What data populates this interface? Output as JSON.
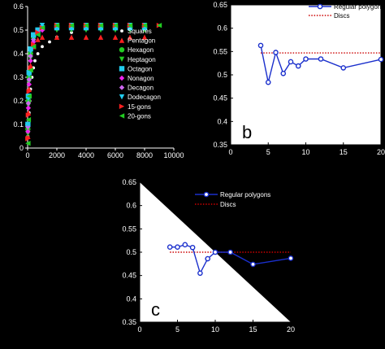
{
  "chart_data": [
    {
      "type": "scatter",
      "panel": "a",
      "xlabel": "",
      "ylabel": "",
      "xlim": [
        0,
        10000
      ],
      "ylim": [
        0,
        0.6
      ],
      "x_ticks": [
        "0",
        "2000",
        "4000",
        "6000",
        "8000",
        "10000"
      ],
      "y_ticks": [
        "0",
        "0.1",
        "0.2",
        "0.3",
        "0.4",
        "0.5",
        "0.6"
      ],
      "x_tick_values": [
        0,
        2000,
        4000,
        6000,
        8000,
        10000
      ],
      "y_tick_values": [
        0,
        0.1,
        0.2,
        0.3,
        0.4,
        0.5,
        0.6
      ],
      "legend_position": "right",
      "series": [
        {
          "name": "Squares",
          "marker": "dot",
          "color": "#ffffff",
          "x": [
            20,
            50,
            100,
            150,
            200,
            300,
            400,
            500,
            700,
            1000,
            1500,
            2000,
            3000
          ],
          "y": [
            0.05,
            0.1,
            0.15,
            0.2,
            0.25,
            0.3,
            0.34,
            0.37,
            0.4,
            0.43,
            0.45,
            0.47,
            0.49
          ]
        },
        {
          "name": "Pentagon",
          "marker": "triangle-up",
          "color": "#ff2020",
          "x": [
            20,
            50,
            100,
            200,
            400,
            700,
            1000,
            2000,
            3000,
            4000,
            5000,
            6000,
            7000,
            8000
          ],
          "y": [
            0.05,
            0.15,
            0.25,
            0.35,
            0.43,
            0.46,
            0.47,
            0.47,
            0.47,
            0.47,
            0.47,
            0.47,
            0.47,
            0.47
          ]
        },
        {
          "name": "Hexagon",
          "marker": "circle",
          "color": "#22cc22",
          "x": [
            20,
            50,
            100,
            200,
            400,
            700,
            1000,
            2000,
            3000,
            4000,
            5000,
            6000,
            7000,
            8000
          ],
          "y": [
            0.08,
            0.2,
            0.3,
            0.4,
            0.47,
            0.5,
            0.51,
            0.51,
            0.51,
            0.51,
            0.51,
            0.51,
            0.51,
            0.51
          ]
        },
        {
          "name": "Heptagon",
          "marker": "triangle-down",
          "color": "#22cc22",
          "x": [
            20,
            50,
            100,
            200,
            400,
            700,
            1000,
            2000,
            3000,
            4000,
            5000,
            6000,
            7000,
            8000
          ],
          "y": [
            0.06,
            0.18,
            0.28,
            0.38,
            0.46,
            0.49,
            0.5,
            0.5,
            0.5,
            0.5,
            0.5,
            0.5,
            0.5,
            0.5
          ]
        },
        {
          "name": "Octagon",
          "marker": "square",
          "color": "#22ccee",
          "x": [
            20,
            50,
            100,
            200,
            400,
            700,
            1000,
            2000,
            3000,
            4000,
            5000,
            6000,
            7000,
            8000
          ],
          "y": [
            0.1,
            0.22,
            0.32,
            0.42,
            0.48,
            0.5,
            0.51,
            0.51,
            0.51,
            0.51,
            0.51,
            0.51,
            0.51,
            0.51
          ]
        },
        {
          "name": "Nonagon",
          "marker": "diamond",
          "color": "#ee22ee",
          "x": [
            20,
            50,
            100,
            200,
            400,
            700,
            1000
          ],
          "y": [
            0.07,
            0.17,
            0.27,
            0.37,
            0.45,
            0.49,
            0.5
          ]
        },
        {
          "name": "Decagon",
          "marker": "diamond",
          "color": "#cc66ee",
          "x": [
            20,
            50,
            100,
            200,
            400,
            700,
            1000
          ],
          "y": [
            0.09,
            0.19,
            0.29,
            0.39,
            0.46,
            0.5,
            0.51
          ]
        },
        {
          "name": "Dodecagon",
          "marker": "triangle-down",
          "color": "#22ccee",
          "x": [
            20,
            50,
            100,
            200,
            400,
            700,
            1000,
            2000,
            3000,
            4000,
            5000,
            6000,
            7000,
            8000
          ],
          "y": [
            0.1,
            0.21,
            0.31,
            0.41,
            0.47,
            0.5,
            0.52,
            0.52,
            0.52,
            0.52,
            0.52,
            0.52,
            0.52,
            0.52
          ]
        },
        {
          "name": "15-gons",
          "marker": "triangle-right",
          "color": "#ff2020",
          "x": [
            20,
            50,
            100,
            200,
            400,
            700,
            1000,
            2000,
            3000,
            4000,
            5000,
            6000,
            7000,
            8000,
            9000
          ],
          "y": [
            0.04,
            0.14,
            0.24,
            0.34,
            0.44,
            0.49,
            0.51,
            0.52,
            0.52,
            0.52,
            0.52,
            0.52,
            0.52,
            0.52,
            0.52
          ]
        },
        {
          "name": "20-gons",
          "marker": "triangle-left",
          "color": "#22cc22",
          "x": [
            20,
            50,
            100,
            200,
            400,
            700,
            1000,
            2000,
            3000,
            4000,
            5000,
            6000,
            7000,
            8000,
            9000
          ],
          "y": [
            0.02,
            0.12,
            0.22,
            0.33,
            0.43,
            0.48,
            0.51,
            0.52,
            0.52,
            0.52,
            0.52,
            0.52,
            0.52,
            0.52,
            0.52
          ]
        }
      ]
    },
    {
      "type": "line",
      "panel": "b",
      "panel_label": "b",
      "xlabel": "",
      "ylabel": "",
      "xlim": [
        0,
        20
      ],
      "ylim": [
        0.35,
        0.65
      ],
      "x_ticks": [
        "0",
        "5",
        "10",
        "15",
        "20"
      ],
      "y_ticks": [
        "0.35",
        "0.4",
        "0.45",
        "0.5",
        "0.55",
        "0.6",
        "0.65"
      ],
      "x_tick_values": [
        0,
        5,
        10,
        15,
        20
      ],
      "y_tick_values": [
        0.35,
        0.4,
        0.45,
        0.5,
        0.55,
        0.6,
        0.65
      ],
      "legend_position": "top-right",
      "series": [
        {
          "name": "Regular polygon",
          "color": "#1a2fcc",
          "x": [
            4,
            5,
            6,
            7,
            8,
            9,
            10,
            12,
            15,
            20
          ],
          "y": [
            0.563,
            0.484,
            0.548,
            0.503,
            0.528,
            0.519,
            0.534,
            0.534,
            0.515,
            0.533
          ]
        },
        {
          "name": "Discs",
          "color": "#cc0000",
          "style": "dotted",
          "x": [
            4,
            20
          ],
          "y": [
            0.547,
            0.547
          ]
        }
      ]
    },
    {
      "type": "line",
      "panel": "c",
      "panel_label": "c",
      "xlabel": "",
      "ylabel": "",
      "xlim": [
        0,
        20
      ],
      "ylim": [
        0.35,
        0.65
      ],
      "x_ticks": [
        "0",
        "5",
        "10",
        "15",
        "20"
      ],
      "y_ticks": [
        "0.35",
        "0.4",
        "0.45",
        "0.5",
        "0.55",
        "0.6",
        "0.65"
      ],
      "x_tick_values": [
        0,
        5,
        10,
        15,
        20
      ],
      "y_tick_values": [
        0.35,
        0.4,
        0.45,
        0.5,
        0.55,
        0.6,
        0.65
      ],
      "legend_position": "top-right",
      "series": [
        {
          "name": "Regular polygons",
          "color": "#1a2fcc",
          "x": [
            4,
            5,
            6,
            7,
            8,
            9,
            10,
            12,
            15,
            20
          ],
          "y": [
            0.511,
            0.511,
            0.516,
            0.51,
            0.455,
            0.486,
            0.5,
            0.5,
            0.474,
            0.487
          ]
        },
        {
          "name": "Discs",
          "color": "#cc0000",
          "style": "dotted",
          "x": [
            4,
            20
          ],
          "y": [
            0.5,
            0.5
          ]
        }
      ]
    }
  ]
}
